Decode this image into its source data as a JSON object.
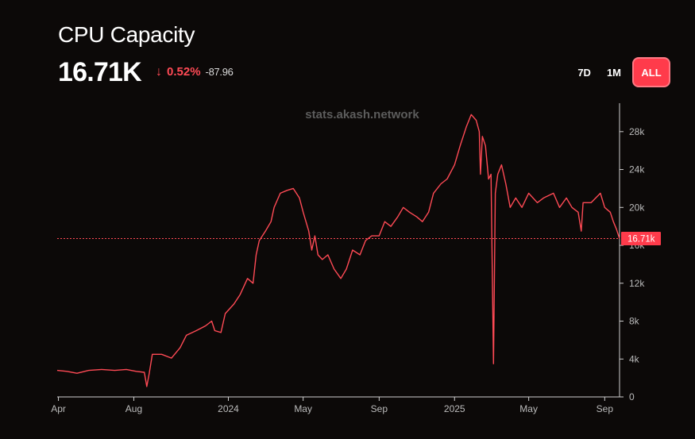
{
  "header": {
    "title": "CPU Capacity",
    "value": "16.71K",
    "change_arrow": "↓",
    "change_pct": "0.52%",
    "change_abs": "-87.96"
  },
  "range_buttons": [
    {
      "label": "7D",
      "active": false
    },
    {
      "label": "1M",
      "active": false
    },
    {
      "label": "ALL",
      "active": true
    }
  ],
  "watermark": "stats.akash.network",
  "colors": {
    "line": "#ff4a55",
    "accent": "#ff3b4b",
    "axis": "#bbbbbb",
    "background": "#0c0908"
  },
  "chart_data": {
    "type": "line",
    "title": "CPU Capacity",
    "xlabel": "",
    "ylabel": "",
    "x_domain": [
      "2023-03-30",
      "2025-09-25"
    ],
    "ylim": [
      0,
      31000
    ],
    "y_ticks": [
      {
        "value": 0,
        "label": "0"
      },
      {
        "value": 4000,
        "label": "4k"
      },
      {
        "value": 8000,
        "label": "8k"
      },
      {
        "value": 12000,
        "label": "12k"
      },
      {
        "value": 16000,
        "label": "16k"
      },
      {
        "value": 20000,
        "label": "20k"
      },
      {
        "value": 24000,
        "label": "24k"
      },
      {
        "value": 28000,
        "label": "28k"
      }
    ],
    "x_ticks": [
      {
        "date": "2023-04-01",
        "label": "Apr"
      },
      {
        "date": "2023-08-01",
        "label": "Aug"
      },
      {
        "date": "2024-01-01",
        "label": "2024"
      },
      {
        "date": "2024-05-01",
        "label": "May"
      },
      {
        "date": "2024-09-01",
        "label": "Sep"
      },
      {
        "date": "2025-01-01",
        "label": "2025"
      },
      {
        "date": "2025-05-01",
        "label": "May"
      },
      {
        "date": "2025-09-01",
        "label": "Sep"
      }
    ],
    "current": {
      "value": 16710,
      "label": "16.71k"
    },
    "series": [
      {
        "name": "CPU Capacity",
        "points": [
          [
            "2023-03-30",
            2800
          ],
          [
            "2023-04-15",
            2700
          ],
          [
            "2023-05-01",
            2500
          ],
          [
            "2023-05-20",
            2800
          ],
          [
            "2023-06-10",
            2900
          ],
          [
            "2023-07-01",
            2800
          ],
          [
            "2023-07-20",
            2900
          ],
          [
            "2023-08-05",
            2700
          ],
          [
            "2023-08-18",
            2600
          ],
          [
            "2023-08-22",
            1100
          ],
          [
            "2023-08-26",
            2500
          ],
          [
            "2023-08-31",
            4500
          ],
          [
            "2023-09-15",
            4500
          ],
          [
            "2023-10-01",
            4100
          ],
          [
            "2023-10-15",
            5200
          ],
          [
            "2023-10-25",
            6500
          ],
          [
            "2023-11-10",
            7000
          ],
          [
            "2023-11-25",
            7500
          ],
          [
            "2023-12-05",
            8000
          ],
          [
            "2023-12-10",
            7000
          ],
          [
            "2023-12-20",
            6800
          ],
          [
            "2023-12-27",
            8800
          ],
          [
            "2024-01-10",
            9800
          ],
          [
            "2024-01-20",
            10800
          ],
          [
            "2024-02-01",
            12500
          ],
          [
            "2024-02-10",
            12000
          ],
          [
            "2024-02-15",
            15000
          ],
          [
            "2024-02-20",
            16500
          ],
          [
            "2024-03-01",
            17500
          ],
          [
            "2024-03-10",
            18500
          ],
          [
            "2024-03-15",
            20000
          ],
          [
            "2024-03-25",
            21500
          ],
          [
            "2024-04-05",
            21800
          ],
          [
            "2024-04-15",
            22000
          ],
          [
            "2024-04-25",
            21000
          ],
          [
            "2024-05-01",
            19500
          ],
          [
            "2024-05-10",
            17500
          ],
          [
            "2024-05-15",
            15500
          ],
          [
            "2024-05-20",
            17000
          ],
          [
            "2024-05-25",
            15000
          ],
          [
            "2024-06-01",
            14500
          ],
          [
            "2024-06-10",
            15000
          ],
          [
            "2024-06-20",
            13500
          ],
          [
            "2024-07-01",
            12500
          ],
          [
            "2024-07-10",
            13500
          ],
          [
            "2024-07-20",
            15500
          ],
          [
            "2024-08-01",
            15000
          ],
          [
            "2024-08-10",
            16500
          ],
          [
            "2024-08-20",
            17000
          ],
          [
            "2024-09-01",
            17000
          ],
          [
            "2024-09-10",
            18500
          ],
          [
            "2024-09-20",
            18000
          ],
          [
            "2024-10-01",
            19000
          ],
          [
            "2024-10-10",
            20000
          ],
          [
            "2024-10-20",
            19500
          ],
          [
            "2024-11-01",
            19000
          ],
          [
            "2024-11-10",
            18500
          ],
          [
            "2024-11-20",
            19500
          ],
          [
            "2024-11-28",
            21500
          ],
          [
            "2024-12-10",
            22500
          ],
          [
            "2024-12-20",
            23000
          ],
          [
            "2025-01-01",
            24500
          ],
          [
            "2025-01-10",
            26500
          ],
          [
            "2025-01-20",
            28500
          ],
          [
            "2025-01-28",
            29800
          ],
          [
            "2025-02-05",
            29200
          ],
          [
            "2025-02-10",
            28000
          ],
          [
            "2025-02-12",
            23500
          ],
          [
            "2025-02-15",
            27500
          ],
          [
            "2025-02-20",
            26500
          ],
          [
            "2025-02-25",
            23000
          ],
          [
            "2025-03-01",
            23500
          ],
          [
            "2025-03-05",
            3500
          ],
          [
            "2025-03-08",
            21500
          ],
          [
            "2025-03-12",
            23500
          ],
          [
            "2025-03-18",
            24500
          ],
          [
            "2025-03-25",
            22500
          ],
          [
            "2025-04-01",
            20000
          ],
          [
            "2025-04-10",
            21000
          ],
          [
            "2025-04-20",
            20000
          ],
          [
            "2025-05-01",
            21500
          ],
          [
            "2025-05-15",
            20500
          ],
          [
            "2025-05-25",
            21000
          ],
          [
            "2025-06-10",
            21500
          ],
          [
            "2025-06-20",
            20000
          ],
          [
            "2025-07-01",
            21000
          ],
          [
            "2025-07-10",
            20000
          ],
          [
            "2025-07-20",
            19500
          ],
          [
            "2025-07-25",
            17500
          ],
          [
            "2025-07-28",
            20500
          ],
          [
            "2025-08-10",
            20500
          ],
          [
            "2025-08-25",
            21500
          ],
          [
            "2025-09-01",
            20000
          ],
          [
            "2025-09-10",
            19500
          ],
          [
            "2025-09-15",
            18500
          ],
          [
            "2025-09-20",
            17700
          ],
          [
            "2025-09-25",
            16710
          ]
        ]
      }
    ]
  }
}
